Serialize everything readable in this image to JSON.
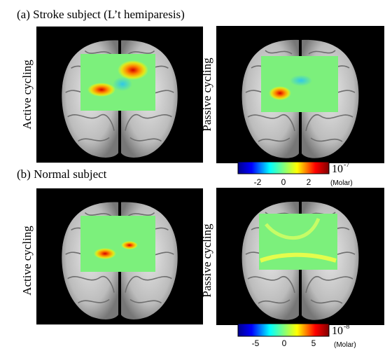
{
  "panel_a": {
    "label": "(a) Stroke subject (L’t hemiparesis)",
    "left_label": "Active cycling",
    "right_label": "Passive cycling"
  },
  "colorbar_a": {
    "base": "10",
    "exponent": "-7",
    "ticks": [
      "-2",
      "0",
      "2"
    ],
    "unit": "(Molar)"
  },
  "panel_b": {
    "label": "(b) Normal subject",
    "left_label": "Active cycling",
    "right_label": "Passive cycling"
  },
  "colorbar_b": {
    "base": "10",
    "exponent": "-8",
    "ticks": [
      "-5",
      "0",
      "5"
    ],
    "unit": "(Molar)"
  }
}
